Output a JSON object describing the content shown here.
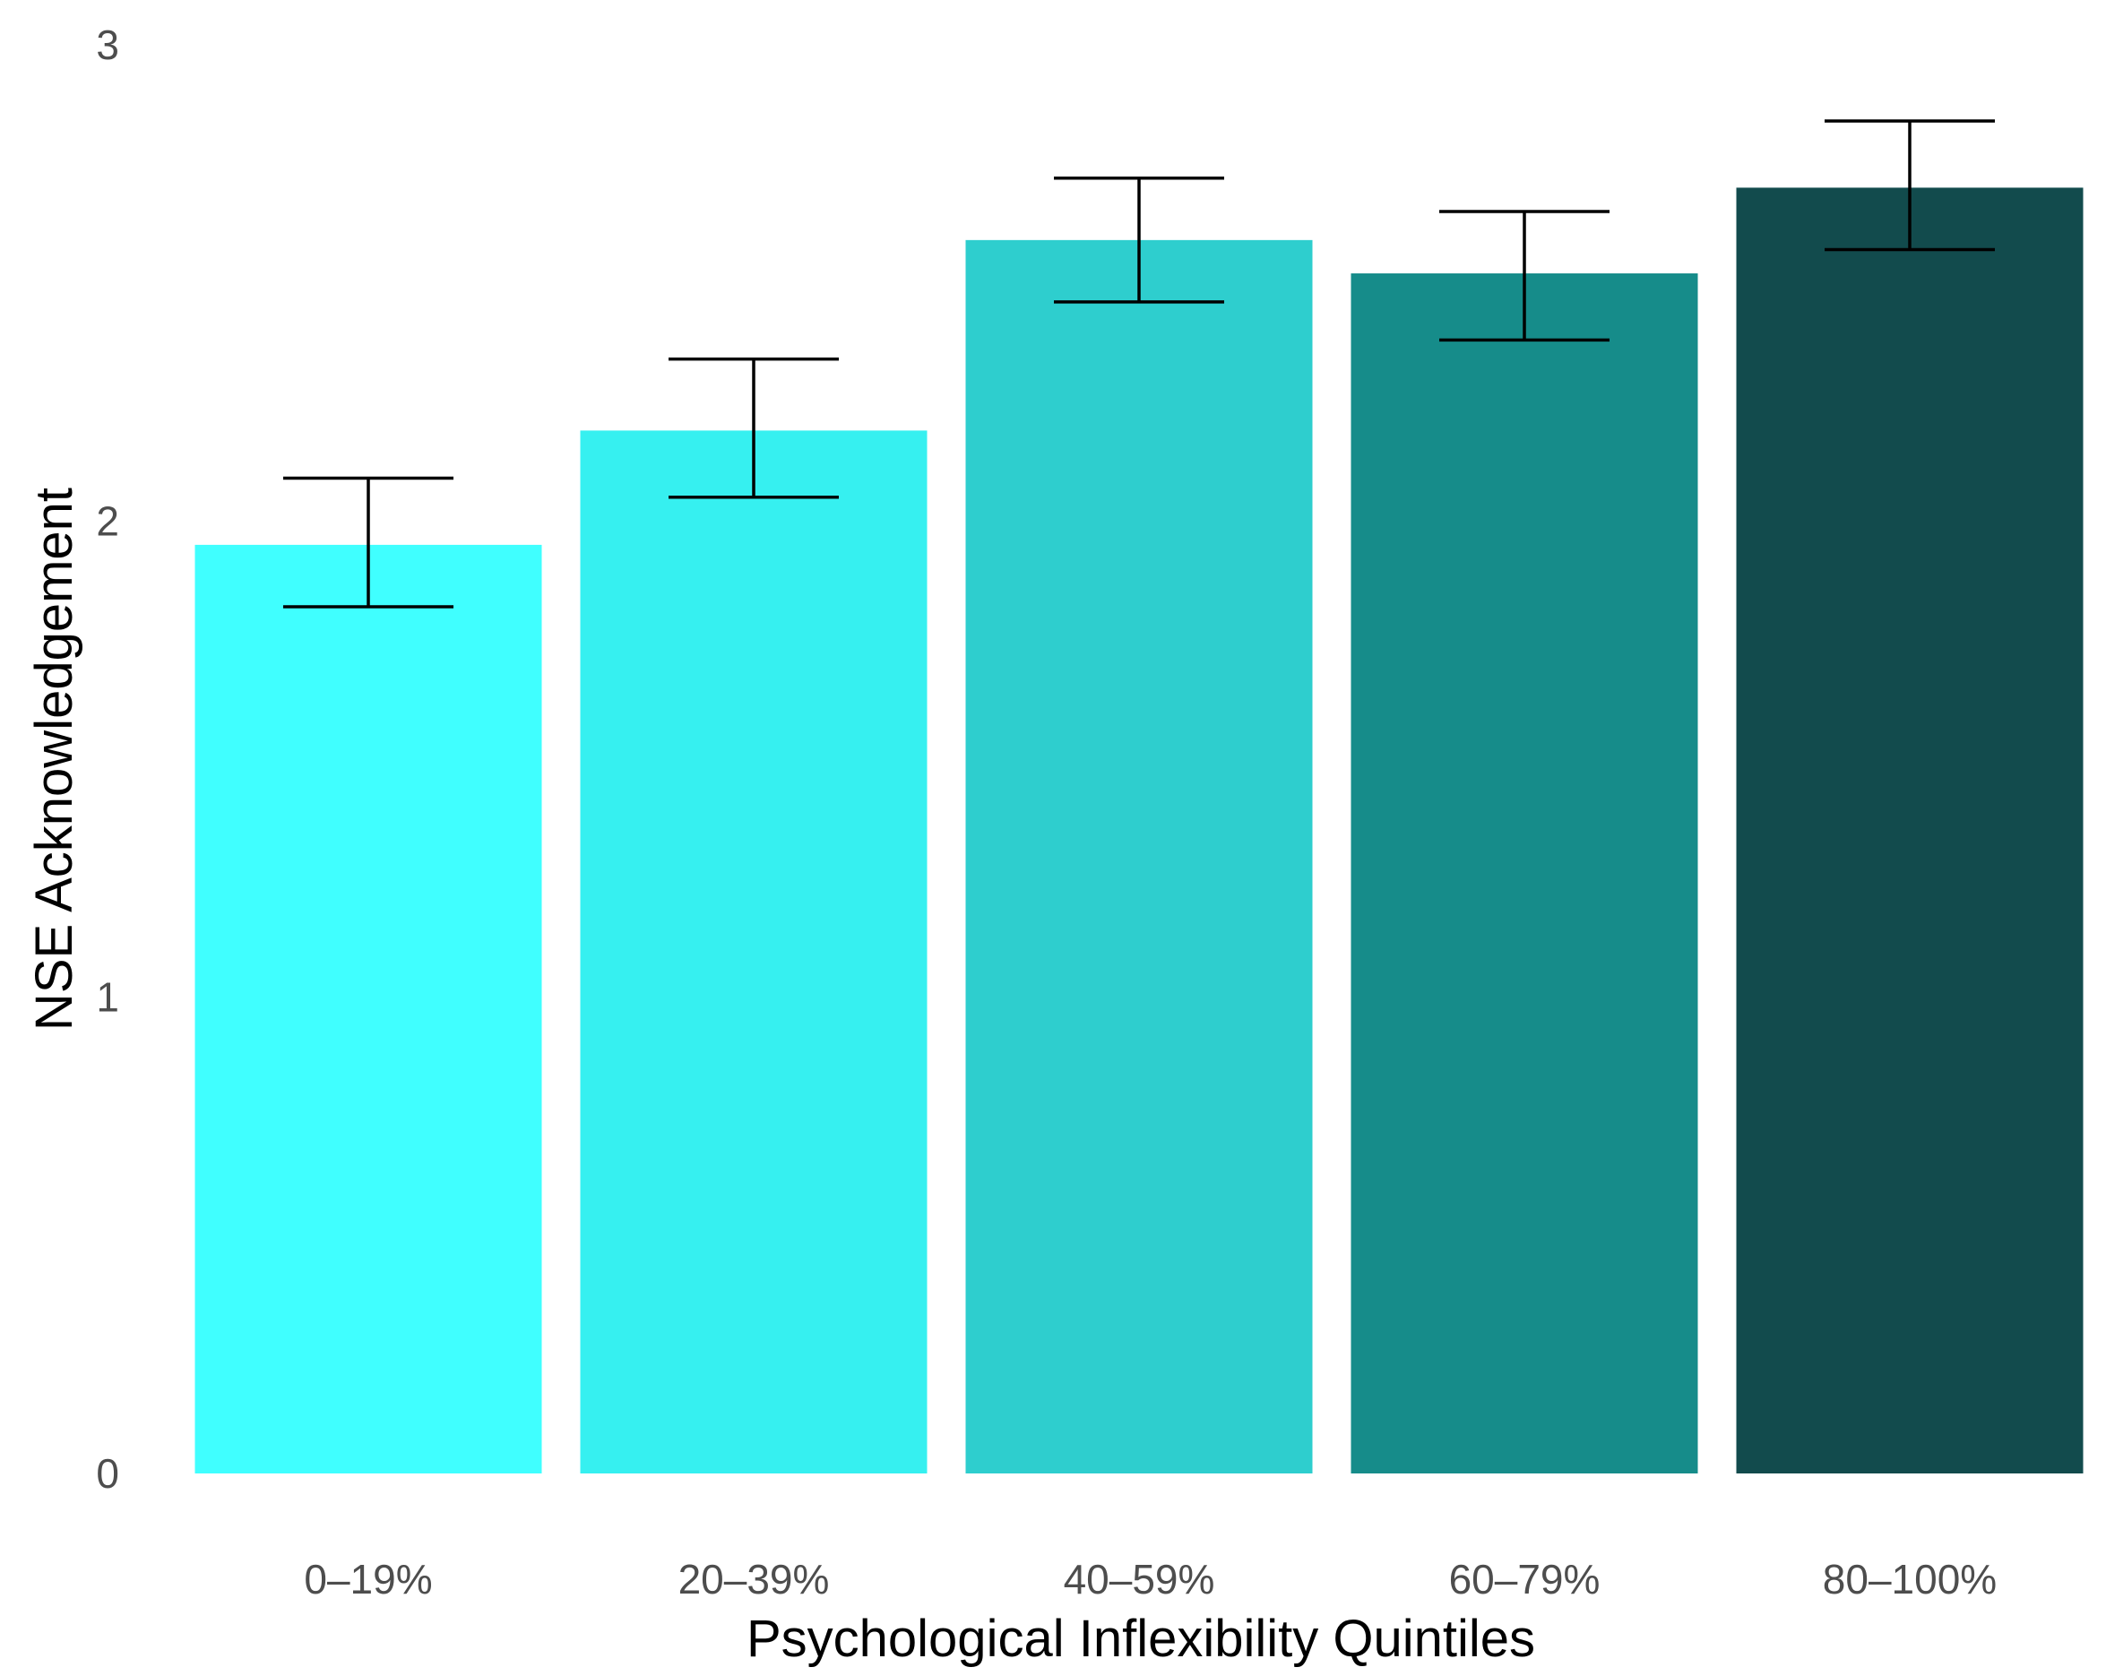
{
  "chart_data": {
    "type": "bar",
    "title": "",
    "xlabel": "Psychological Inflexibility Quintiles",
    "ylabel": "NSE Acknowledgement",
    "categories": [
      "0‒19%",
      "20‒39%",
      "40‒59%",
      "60‒79%",
      "80‒100%"
    ],
    "values": [
      1.95,
      2.19,
      2.59,
      2.52,
      2.7
    ],
    "error_low": [
      1.82,
      2.05,
      2.46,
      2.38,
      2.57
    ],
    "error_high": [
      2.09,
      2.34,
      2.72,
      2.65,
      2.84
    ],
    "colors": [
      "#40FFFF",
      "#36F0F0",
      "#2ECECE",
      "#168C8A",
      "#124B4D"
    ],
    "ylim": [
      0,
      3
    ],
    "yticks": [
      0,
      1,
      2,
      3
    ],
    "grid": false,
    "legend": "none"
  }
}
